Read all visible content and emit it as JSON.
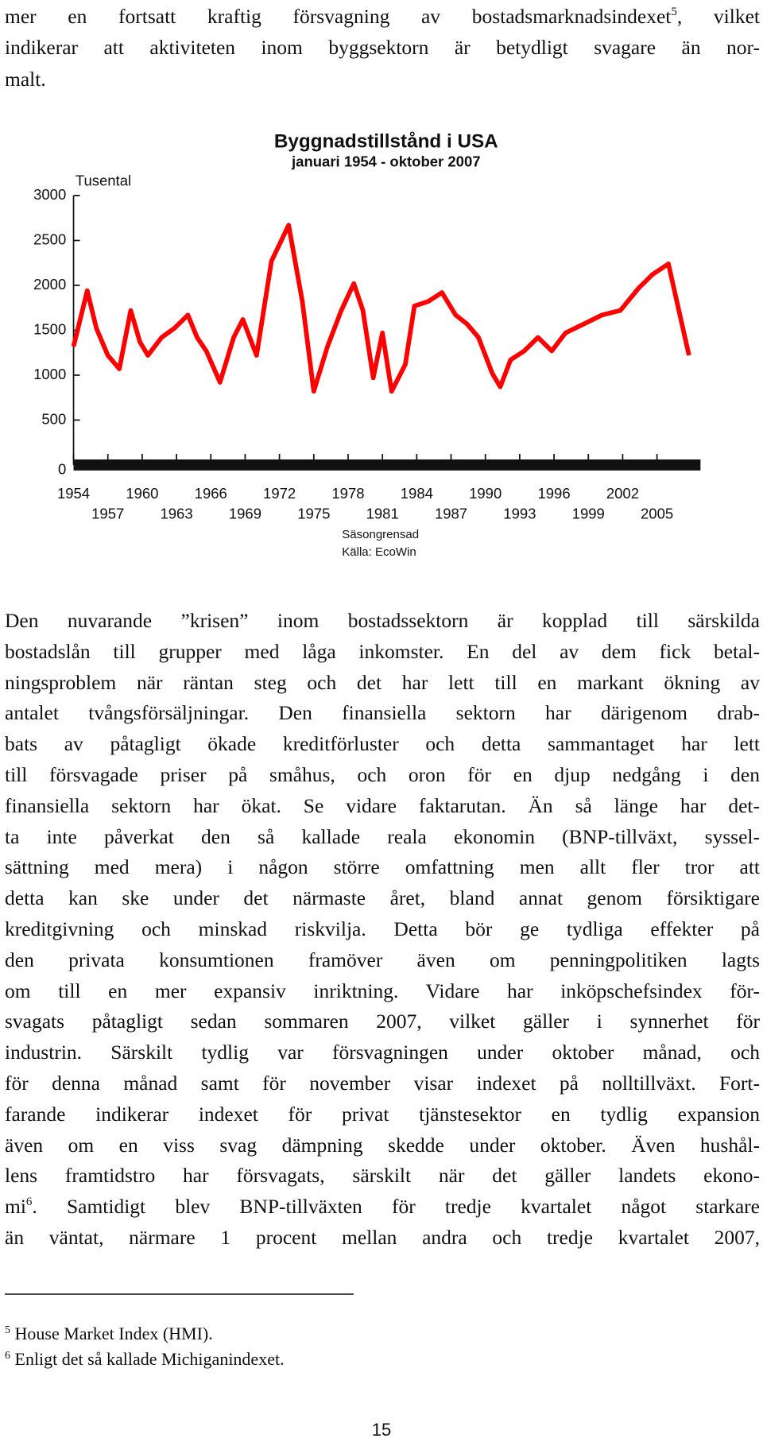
{
  "intro": {
    "text_before": "mer en fortsatt kraftig försvagning av bostadsmarknadsindexet",
    "footnote_ref": "5",
    "text_after": ", vilket",
    "lines": [
      "indikerar att aktiviteten inom byggsektorn är betydligt svagare än nor-",
      "malt."
    ]
  },
  "chart_data": {
    "type": "line",
    "title": "Byggnadstillstånd i USA",
    "subtitle": "januari 1954 - oktober 2007",
    "y_unit_label": "Tusental",
    "notes": [
      "Säsongrensad",
      "Källa: EcoWin"
    ],
    "color": "#ff0000",
    "x": [
      1954,
      1955.2,
      1956,
      1957,
      1958,
      1959,
      1959.8,
      1960.5,
      1961.7,
      1962.8,
      1964,
      1964.8,
      1965.6,
      1966.8,
      1968,
      1968.8,
      1970,
      1971.3,
      1972.8,
      1974,
      1975,
      1976.2,
      1977.4,
      1978.5,
      1979.3,
      1980.2,
      1981,
      1981.8,
      1983,
      1983.8,
      1985,
      1986.2,
      1987.4,
      1988.4,
      1989.4,
      1990.6,
      1991.3,
      1992.2,
      1993.4,
      1994.6,
      1995.8,
      1997,
      1998.6,
      2000.2,
      2001.8,
      2003.4,
      2004.6,
      2006,
      2007,
      2007.8
    ],
    "values": [
      1320,
      1940,
      1520,
      1220,
      1070,
      1720,
      1370,
      1220,
      1420,
      1520,
      1670,
      1420,
      1270,
      920,
      1420,
      1620,
      1220,
      2270,
      2670,
      1820,
      820,
      1320,
      1720,
      2020,
      1720,
      970,
      1470,
      820,
      1120,
      1770,
      1820,
      1920,
      1670,
      1570,
      1420,
      1020,
      870,
      1170,
      1270,
      1420,
      1270,
      1470,
      1570,
      1670,
      1720,
      1970,
      2120,
      2240,
      1670,
      1220
    ],
    "xlim": [
      1954,
      2008
    ],
    "xticks": [
      1954,
      1957,
      1960,
      1963,
      1966,
      1969,
      1972,
      1975,
      1978,
      1981,
      1984,
      1987,
      1990,
      1993,
      1996,
      1999,
      2002,
      2005
    ],
    "ylim": [
      0,
      3000
    ],
    "yticks": [
      0,
      500,
      1000,
      1500,
      2000,
      2500,
      3000
    ]
  },
  "body": {
    "lines": [
      "Den nuvarande ”krisen” inom bostadssektorn är kopplad till särskilda",
      "bostadslån till grupper med låga inkomster. En del av dem fick betal-",
      "ningsproblem när räntan steg och det har lett till en markant ökning av",
      "antalet tvångsförsäljningar. Den finansiella sektorn har därigenom drab-",
      "bats av påtagligt ökade kreditförluster och detta sammantaget har lett",
      "till försvagade priser på småhus, och oron för en djup nedgång i den",
      "finansiella sektorn har ökat. Se vidare faktarutan. Än så länge har det-",
      "ta inte påverkat den så kallade reala ekonomin (BNP-tillväxt, syssel-",
      "sättning med mera) i någon större omfattning men allt fler tror att",
      "detta kan ske under det närmaste året, bland annat genom försiktigare",
      "kreditgivning och minskad riskvilja. Detta bör ge tydliga effekter på",
      "den privata konsumtionen framöver även om penningpolitiken lagts",
      "om till en mer expansiv inriktning. Vidare har inköpschefsindex för-",
      "svagats påtagligt sedan sommaren 2007, vilket gäller i synnerhet för",
      "industrin. Särskilt tydlig var försvagningen under oktober månad, och",
      "för denna månad samt för november visar indexet på nolltillväxt. Fort-",
      "farande indikerar indexet för privat tjänstesektor en tydlig expansion",
      "även om en viss svag dämpning skedde under oktober. Även hushål-",
      "lens framtidstro har försvagats, särskilt när det gäller landets ekono-"
    ],
    "text_before_ref": "mi",
    "footnote_ref": "6",
    "text_after_ref": ". Samtidigt blev BNP-tillväxten för tredje kvartalet något starkare",
    "last_line": "än väntat, närmare 1 procent mellan andra och tredje kvartalet 2007,"
  },
  "footnotes": [
    {
      "number": "5",
      "text": "House Market Index (HMI)."
    },
    {
      "number": "6",
      "text": "Enligt det så kallade Michiganindexet."
    }
  ],
  "page_number": "15"
}
